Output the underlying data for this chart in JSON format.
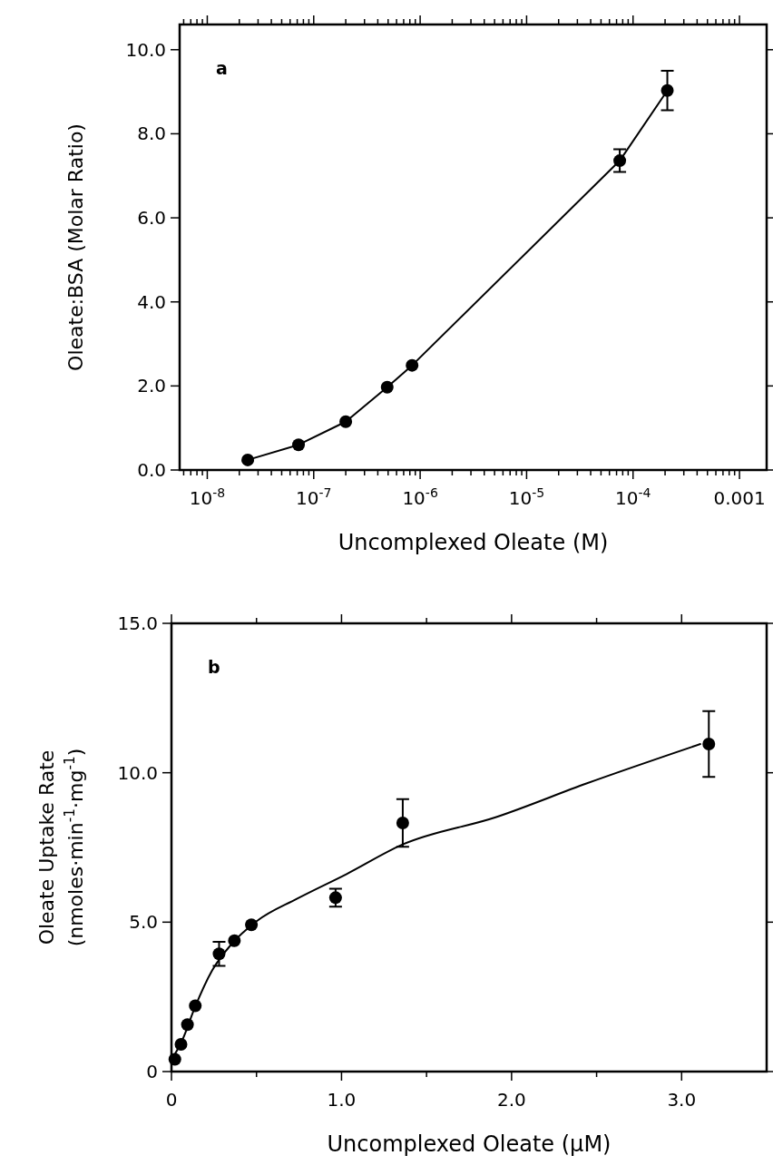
{
  "chart_data": [
    {
      "type": "line",
      "xlabel": "Uncomplexed Oleate (M)",
      "ylabel": "Oleate:BSA (Molar Ratio)",
      "annotations": [
        "a"
      ],
      "log": "x",
      "xlim": [
        5.5e-09,
        0.0018
      ],
      "ylim": [
        0,
        10.6
      ],
      "marker": "circle",
      "line_style": "solid",
      "grid": false,
      "xticks": [
        {
          "value": 1e-08,
          "label": "10$^{-8}$"
        },
        {
          "value": 1e-07,
          "label": "10$^{-7}$"
        },
        {
          "value": 1e-06,
          "label": "10$^{-6}$"
        },
        {
          "value": 1e-05,
          "label": "10$^{-5}$"
        },
        {
          "value": 0.0001,
          "label": "10$^{-4}$"
        },
        0.001,
        {
          "value": 6e-09,
          "label": null
        },
        {
          "value": 7e-09,
          "label": null
        },
        {
          "value": 8e-09,
          "label": null
        },
        {
          "value": 9e-09,
          "label": null
        },
        {
          "value": 2e-08,
          "label": null
        },
        {
          "value": 3e-08,
          "label": null
        },
        {
          "value": 4e-08,
          "label": null
        },
        {
          "value": 5e-08,
          "label": null
        },
        {
          "value": 6e-08,
          "label": null
        },
        {
          "value": 7e-08,
          "label": null
        },
        {
          "value": 8e-08,
          "label": null
        },
        {
          "value": 9e-08,
          "label": null
        },
        {
          "value": 2e-07,
          "label": null
        },
        {
          "value": 3e-07,
          "label": null
        },
        {
          "value": 4e-07,
          "label": null
        },
        {
          "value": 5e-07,
          "label": null
        },
        {
          "value": 6e-07,
          "label": null
        },
        {
          "value": 7e-07,
          "label": null
        },
        {
          "value": 8e-07,
          "label": null
        },
        {
          "value": 9e-07,
          "label": null
        },
        {
          "value": 2e-06,
          "label": null
        },
        {
          "value": 3e-06,
          "label": null
        },
        {
          "value": 4e-06,
          "label": null
        },
        {
          "value": 5e-06,
          "label": null
        },
        {
          "value": 6e-06,
          "label": null
        },
        {
          "value": 7e-06,
          "label": null
        },
        {
          "value": 8e-06,
          "label": null
        },
        {
          "value": 9e-06,
          "label": null
        },
        {
          "value": 2e-05,
          "label": null
        },
        {
          "value": 3e-05,
          "label": null
        },
        {
          "value": 4e-05,
          "label": null
        },
        {
          "value": 5e-05,
          "label": null
        },
        {
          "value": 6e-05,
          "label": null
        },
        {
          "value": 7e-05,
          "label": null
        },
        {
          "value": 8e-05,
          "label": null
        },
        {
          "value": 9e-05,
          "label": null
        },
        {
          "value": 0.0002,
          "label": null
        },
        {
          "value": 0.0003,
          "label": null
        },
        {
          "value": 0.0004,
          "label": null
        },
        {
          "value": 0.0005,
          "label": null
        },
        {
          "value": 0.0006,
          "label": null
        },
        {
          "value": 0.0007,
          "label": null
        },
        {
          "value": 0.0008,
          "label": null
        },
        {
          "value": 0.0009,
          "label": null
        }
      ],
      "yticks": [
        {
          "value": 0,
          "label": "0.0"
        },
        {
          "value": 2,
          "label": "2.0"
        },
        {
          "value": 4,
          "label": "4.0"
        },
        {
          "value": 6,
          "label": "6.0"
        },
        {
          "value": 8,
          "label": "8.0"
        },
        {
          "value": 10,
          "label": "10.0"
        }
      ],
      "series": [
        {
          "color": "#000000",
          "x": [
            2.4e-08,
            7.2e-08,
            2e-07,
            4.9e-07,
            8.4e-07,
            7.5e-05,
            0.00021
          ],
          "values": [
            0.24,
            0.6,
            1.15,
            1.97,
            2.49,
            7.36,
            9.03
          ],
          "errors": [
            null,
            null,
            null,
            null,
            null,
            0.27,
            0.47
          ]
        }
      ]
    },
    {
      "type": "scatter",
      "xlabel": "Uncomplexed Oleate (μM)",
      "ylabel": "Oleate Uptake Rate\n(nmoles·min$^{-1}$·mg$^{-1}$)",
      "annotations": [
        "b"
      ],
      "xlim": [
        0,
        3.5
      ],
      "ylim": [
        0,
        15
      ],
      "marker": "circle",
      "grid": false,
      "xticks": [
        0,
        {
          "value": 0.5,
          "label": null
        },
        {
          "value": 1,
          "label": "1.0"
        },
        {
          "value": 1.5,
          "label": null
        },
        {
          "value": 2,
          "label": "2.0"
        },
        {
          "value": 2.5,
          "label": null
        },
        {
          "value": 3,
          "label": "3.0"
        }
      ],
      "yticks": [
        0,
        {
          "value": 5,
          "label": "5.0"
        },
        {
          "value": 10,
          "label": "10.0"
        },
        {
          "value": 15,
          "label": "15.0"
        }
      ],
      "series": [
        {
          "color": "#000000",
          "x": [
            0.02,
            0.056,
            0.094,
            0.14,
            0.28,
            0.37,
            0.47,
            0.965,
            1.36,
            3.16
          ],
          "values": [
            0.41,
            0.91,
            1.57,
            2.2,
            3.94,
            4.38,
            4.91,
            5.82,
            8.32,
            10.96
          ],
          "errors": [
            null,
            null,
            null,
            null,
            0.4,
            null,
            null,
            0.3,
            0.8,
            1.1
          ]
        },
        {
          "type": "line",
          "color": "#000000",
          "marker": "none",
          "line_style": "solid",
          "x": [
            0.012,
            0.065,
            0.138,
            0.24,
            0.357,
            0.503,
            0.737,
            1.03,
            1.36,
            1.906,
            2.44,
            3.11
          ],
          "values": [
            0.5,
            1.07,
            2.15,
            3.39,
            4.29,
            5.04,
            5.78,
            6.61,
            7.6,
            8.51,
            9.64,
            10.96
          ]
        }
      ]
    }
  ]
}
